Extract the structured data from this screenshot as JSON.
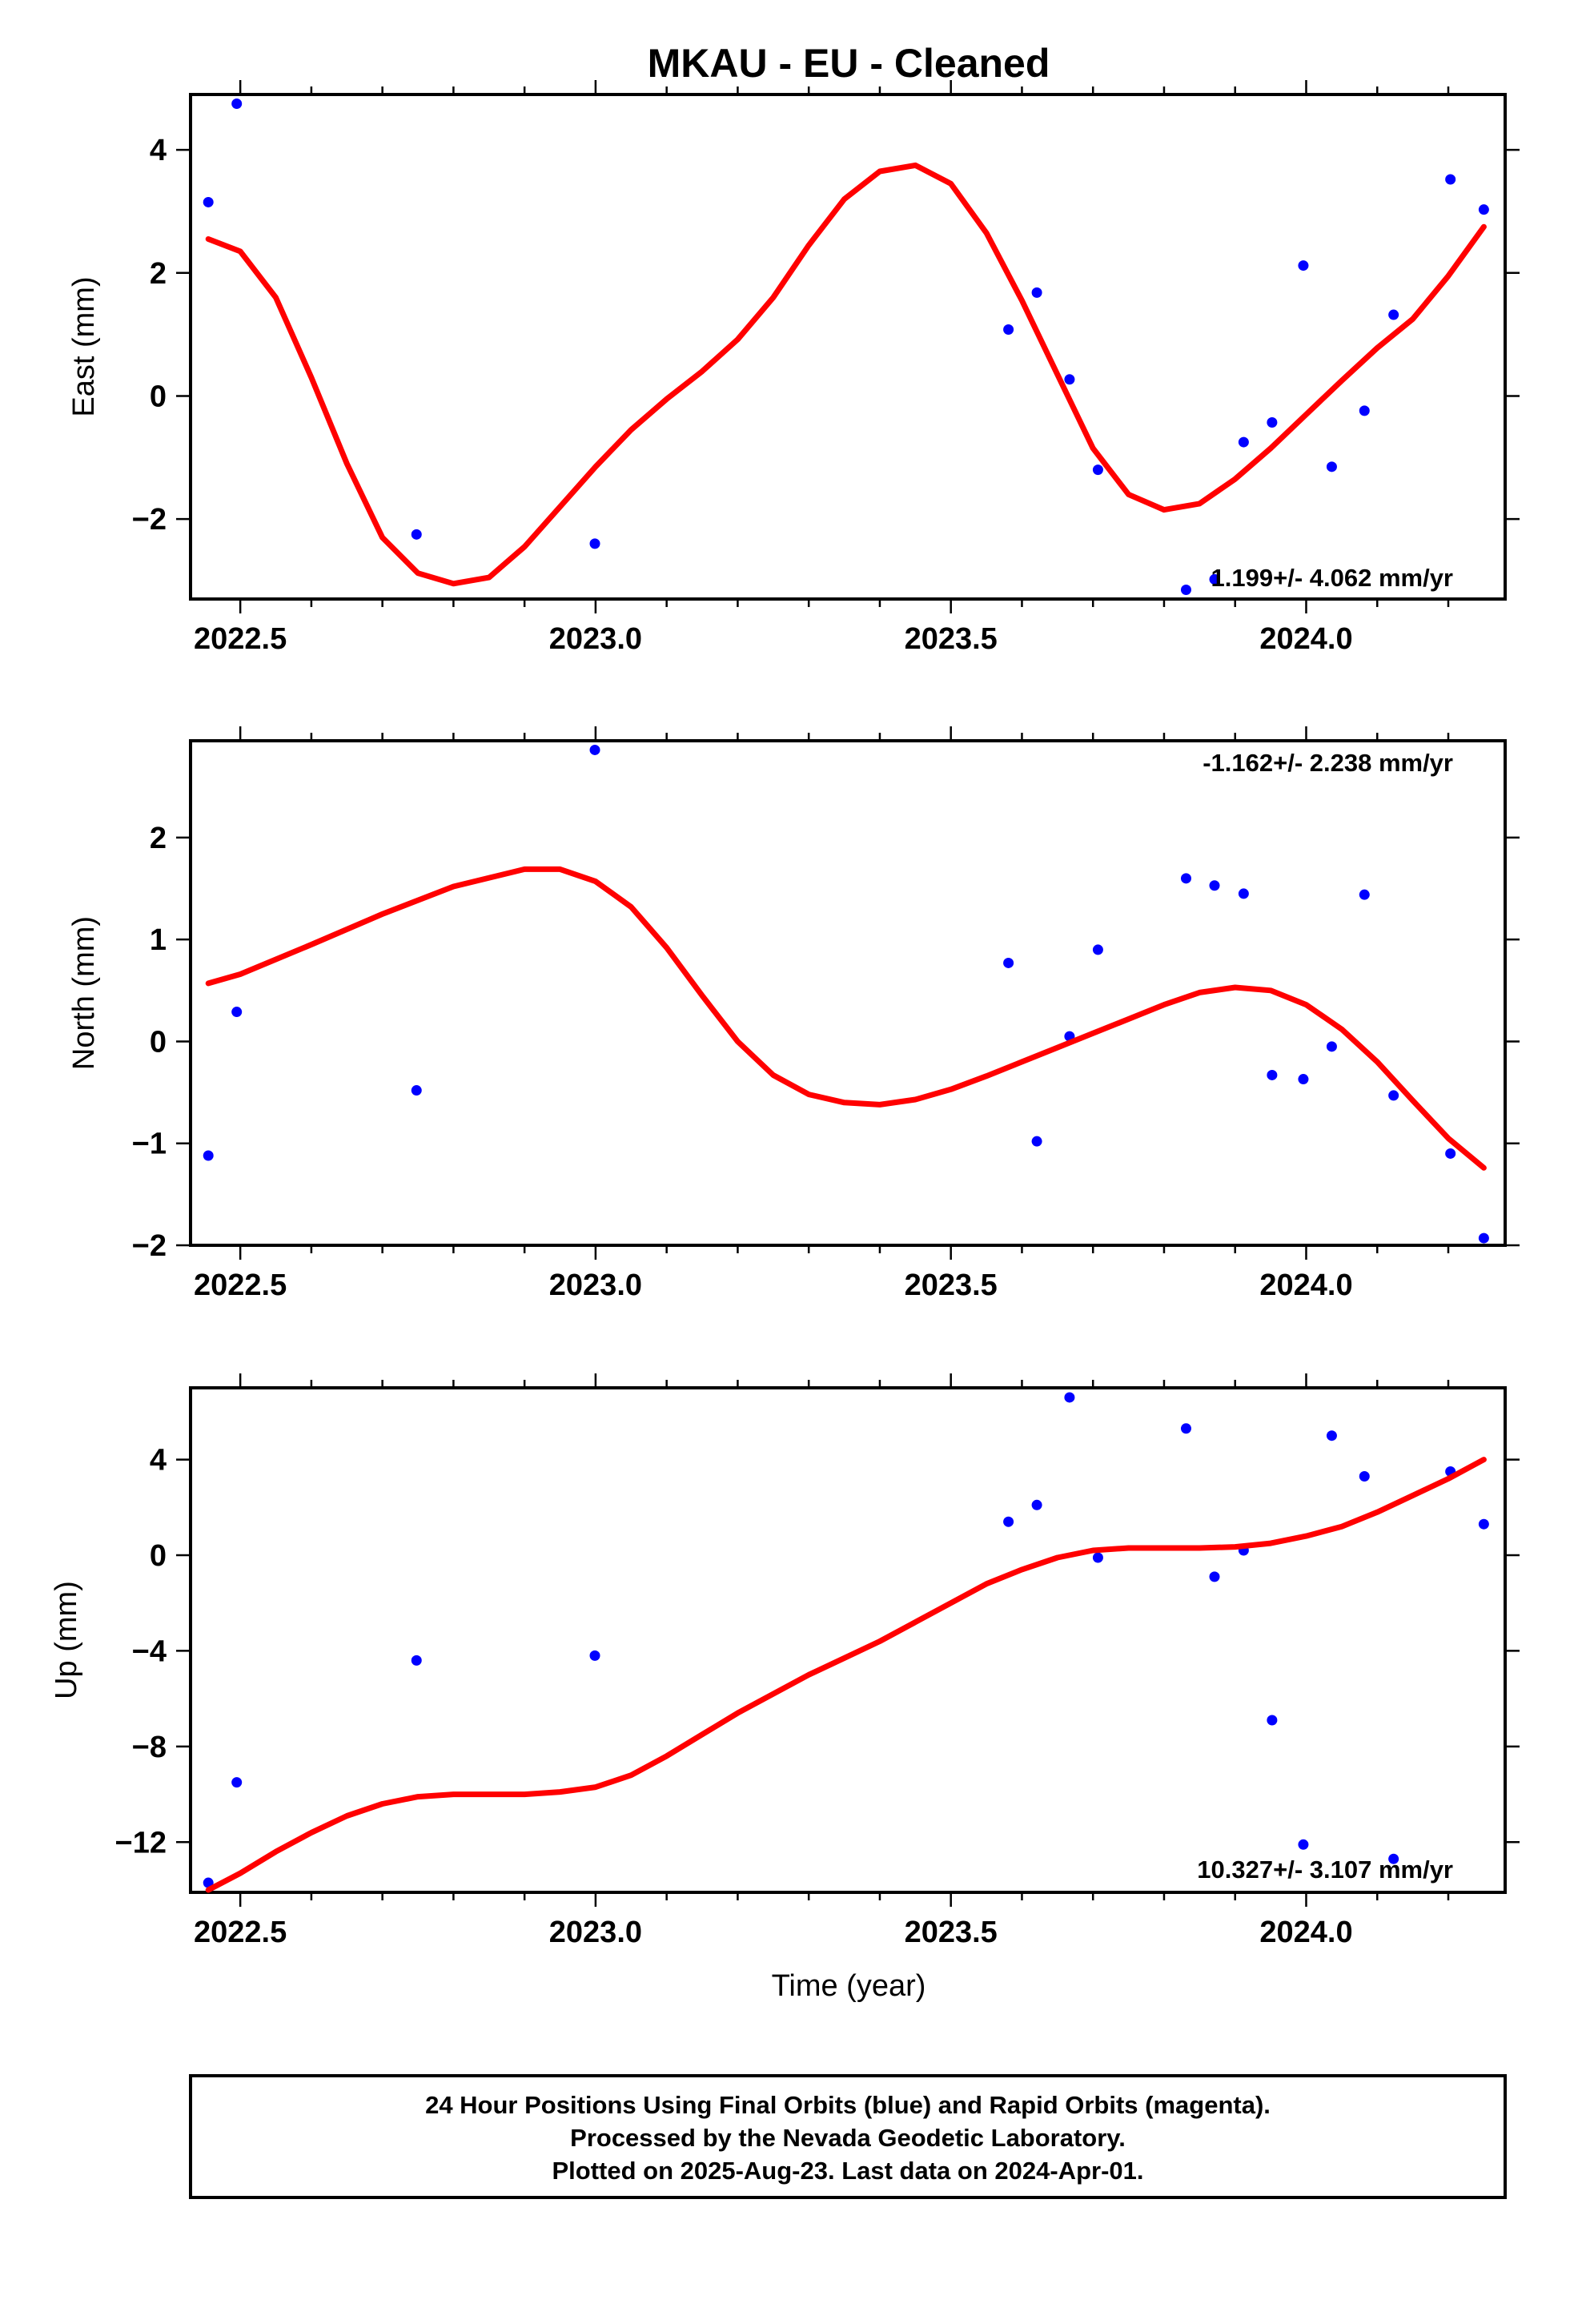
{
  "title": "MKAU  - EU - Cleaned",
  "chart_data": [
    {
      "type": "scatter",
      "panel": "east",
      "ylabel": "East (mm)",
      "xlim": [
        2022.43,
        2024.28
      ],
      "ylim": [
        -3.3,
        4.9
      ],
      "xticks": [
        2022.5,
        2023.0,
        2023.5,
        2024.0
      ],
      "xtick_labels": [
        "2022.5",
        "2023.0",
        "2023.5",
        "2024.0"
      ],
      "yticks": [
        -2,
        0,
        2,
        4
      ],
      "ytick_labels": [
        "−2",
        "0",
        "2",
        "4"
      ],
      "rate_text": "1.199+/- 4.062 mm/yr",
      "points": {
        "x": [
          2022.455,
          2022.495,
          2022.748,
          2022.999,
          2023.581,
          2023.621,
          2023.667,
          2023.707,
          2023.831,
          2023.871,
          2023.912,
          2023.952,
          2023.996,
          2024.036,
          2024.082,
          2024.123,
          2024.203,
          2024.25
        ],
        "y": [
          3.15,
          4.75,
          -2.25,
          -2.4,
          1.08,
          1.68,
          0.27,
          -1.2,
          -3.15,
          -2.98,
          -0.75,
          -0.43,
          2.12,
          -1.15,
          -0.24,
          1.32,
          3.52,
          3.03
        ]
      },
      "model": {
        "x": [
          2022.455,
          2022.5,
          2022.55,
          2022.6,
          2022.65,
          2022.7,
          2022.75,
          2022.8,
          2022.85,
          2022.9,
          2022.95,
          2023.0,
          2023.05,
          2023.1,
          2023.15,
          2023.2,
          2023.25,
          2023.3,
          2023.35,
          2023.4,
          2023.45,
          2023.5,
          2023.55,
          2023.6,
          2023.65,
          2023.7,
          2023.75,
          2023.8,
          2023.85,
          2023.9,
          2023.95,
          2024.0,
          2024.05,
          2024.1,
          2024.15,
          2024.2,
          2024.25
        ],
        "y": [
          2.55,
          2.35,
          1.6,
          0.3,
          -1.1,
          -2.3,
          -2.88,
          -3.05,
          -2.95,
          -2.45,
          -1.8,
          -1.15,
          -0.55,
          -0.05,
          0.4,
          0.92,
          1.6,
          2.45,
          3.2,
          3.65,
          3.75,
          3.45,
          2.65,
          1.55,
          0.35,
          -0.85,
          -1.6,
          -1.85,
          -1.75,
          -1.35,
          -0.85,
          -0.3,
          0.25,
          0.78,
          1.25,
          1.95,
          2.75
        ]
      },
      "point_color": "#0000ff",
      "model_color": "#ff0000"
    },
    {
      "type": "scatter",
      "panel": "north",
      "ylabel": "North (mm)",
      "xlim": [
        2022.43,
        2024.28
      ],
      "ylim": [
        -2.0,
        2.95
      ],
      "xticks": [
        2022.5,
        2023.0,
        2023.5,
        2024.0
      ],
      "xtick_labels": [
        "2022.5",
        "2023.0",
        "2023.5",
        "2024.0"
      ],
      "yticks": [
        -2,
        -1,
        0,
        1,
        2
      ],
      "ytick_labels": [
        "−2",
        "−1",
        "0",
        "1",
        "2"
      ],
      "rate_text": "-1.162+/- 2.238 mm/yr",
      "points": {
        "x": [
          2022.455,
          2022.495,
          2022.748,
          2022.999,
          2023.581,
          2023.621,
          2023.667,
          2023.707,
          2023.831,
          2023.871,
          2023.912,
          2023.952,
          2023.996,
          2024.036,
          2024.082,
          2024.123,
          2024.203,
          2024.25
        ],
        "y": [
          -1.12,
          0.29,
          -0.48,
          2.86,
          0.77,
          -0.98,
          0.05,
          0.9,
          1.6,
          1.53,
          1.45,
          -0.33,
          -0.37,
          -0.05,
          1.44,
          -0.53,
          -1.1,
          -1.93
        ]
      },
      "model": {
        "x": [
          2022.455,
          2022.5,
          2022.6,
          2022.7,
          2022.8,
          2022.9,
          2022.95,
          2023.0,
          2023.05,
          2023.1,
          2023.15,
          2023.2,
          2023.25,
          2023.3,
          2023.35,
          2023.4,
          2023.45,
          2023.5,
          2023.55,
          2023.6,
          2023.65,
          2023.7,
          2023.75,
          2023.8,
          2023.85,
          2023.9,
          2023.95,
          2024.0,
          2024.05,
          2024.1,
          2024.15,
          2024.2,
          2024.25
        ],
        "y": [
          0.57,
          0.66,
          0.95,
          1.25,
          1.52,
          1.69,
          1.69,
          1.57,
          1.32,
          0.92,
          0.45,
          0.0,
          -0.33,
          -0.52,
          -0.6,
          -0.62,
          -0.57,
          -0.47,
          -0.34,
          -0.2,
          -0.06,
          0.08,
          0.22,
          0.36,
          0.48,
          0.53,
          0.5,
          0.36,
          0.12,
          -0.2,
          -0.58,
          -0.95,
          -1.24
        ]
      },
      "point_color": "#0000ff",
      "model_color": "#ff0000"
    },
    {
      "type": "scatter",
      "panel": "up",
      "ylabel": "Up (mm)",
      "xlabel": "Time (year)",
      "xlim": [
        2022.43,
        2024.28
      ],
      "ylim": [
        -14.1,
        7.0
      ],
      "xticks": [
        2022.5,
        2023.0,
        2023.5,
        2024.0
      ],
      "xtick_labels": [
        "2022.5",
        "2023.0",
        "2023.5",
        "2024.0"
      ],
      "yticks": [
        -12,
        -8,
        -4,
        0,
        4
      ],
      "ytick_labels": [
        "−12",
        "−8",
        "−4",
        "0",
        "4"
      ],
      "rate_text": "10.327+/- 3.107 mm/yr",
      "points": {
        "x": [
          2022.455,
          2022.495,
          2022.748,
          2022.999,
          2023.581,
          2023.621,
          2023.667,
          2023.707,
          2023.831,
          2023.871,
          2023.912,
          2023.952,
          2023.996,
          2024.036,
          2024.082,
          2024.123,
          2024.203,
          2024.25
        ],
        "y": [
          -13.7,
          -9.5,
          -4.4,
          -4.2,
          1.4,
          2.1,
          6.6,
          -0.1,
          5.3,
          -0.9,
          0.2,
          -6.9,
          -12.1,
          5.0,
          3.3,
          -12.7,
          3.5,
          1.3
        ]
      },
      "model": {
        "x": [
          2022.455,
          2022.5,
          2022.55,
          2022.6,
          2022.65,
          2022.7,
          2022.75,
          2022.8,
          2022.85,
          2022.9,
          2022.95,
          2023.0,
          2023.05,
          2023.1,
          2023.15,
          2023.2,
          2023.25,
          2023.3,
          2023.35,
          2023.4,
          2023.45,
          2023.5,
          2023.55,
          2023.6,
          2023.65,
          2023.7,
          2023.75,
          2023.8,
          2023.85,
          2023.9,
          2023.95,
          2024.0,
          2024.05,
          2024.1,
          2024.15,
          2024.2,
          2024.25
        ],
        "y": [
          -14.0,
          -13.3,
          -12.4,
          -11.6,
          -10.9,
          -10.4,
          -10.1,
          -10.0,
          -10.0,
          -10.0,
          -9.9,
          -9.7,
          -9.2,
          -8.4,
          -7.5,
          -6.6,
          -5.8,
          -5.0,
          -4.3,
          -3.6,
          -2.8,
          -2.0,
          -1.2,
          -0.6,
          -0.1,
          0.2,
          0.3,
          0.3,
          0.3,
          0.35,
          0.5,
          0.8,
          1.2,
          1.8,
          2.5,
          3.2,
          4.0
        ]
      },
      "point_color": "#0000ff",
      "model_color": "#ff0000"
    }
  ],
  "caption": {
    "lines": [
      "24 Hour Positions Using Final Orbits (blue) and Rapid Orbits (magenta).",
      "Processed by the Nevada Geodetic Laboratory.",
      "Plotted on 2025-Aug-23. Last data on 2024-Apr-01."
    ]
  }
}
